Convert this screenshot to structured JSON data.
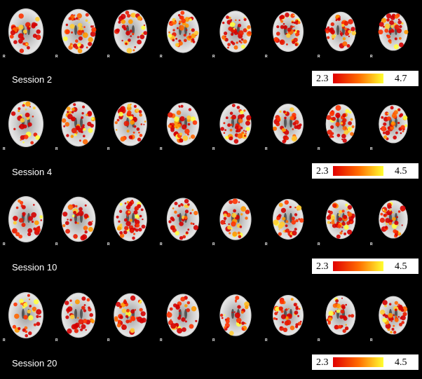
{
  "rows": [
    {
      "label": "Session 2",
      "orientation_label": "R",
      "colorbar": {
        "min": "2.3",
        "max": "4.7"
      }
    },
    {
      "label": "Session 4",
      "orientation_label": "R",
      "colorbar": {
        "min": "2.3",
        "max": "4.5"
      }
    },
    {
      "label": "Session 10",
      "orientation_label": "R",
      "colorbar": {
        "min": "2.3",
        "max": "4.5"
      }
    },
    {
      "label": "Session 20",
      "orientation_label": "R",
      "colorbar": {
        "min": "2.3",
        "max": "4.5"
      }
    }
  ]
}
